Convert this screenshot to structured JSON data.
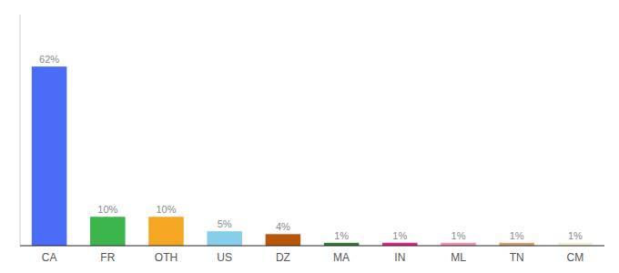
{
  "chart_data": {
    "type": "bar",
    "categories": [
      "CA",
      "FR",
      "OTH",
      "US",
      "DZ",
      "MA",
      "IN",
      "ML",
      "TN",
      "CM"
    ],
    "values": [
      62,
      10,
      10,
      5,
      4,
      1,
      1,
      1,
      1,
      1
    ],
    "value_labels": [
      "62%",
      "10%",
      "10%",
      "5%",
      "4%",
      "1%",
      "1%",
      "1%",
      "1%",
      "1%"
    ],
    "colors": [
      "#4a6cf7",
      "#3cb54a",
      "#f5a623",
      "#87ceeb",
      "#b8560a",
      "#2e7d32",
      "#e91e8c",
      "#f48fb1",
      "#d4a070",
      "#f5f0d0"
    ],
    "ylim": [
      0,
      80
    ],
    "data_labels": true,
    "tick_labels": "x",
    "grid": false
  }
}
